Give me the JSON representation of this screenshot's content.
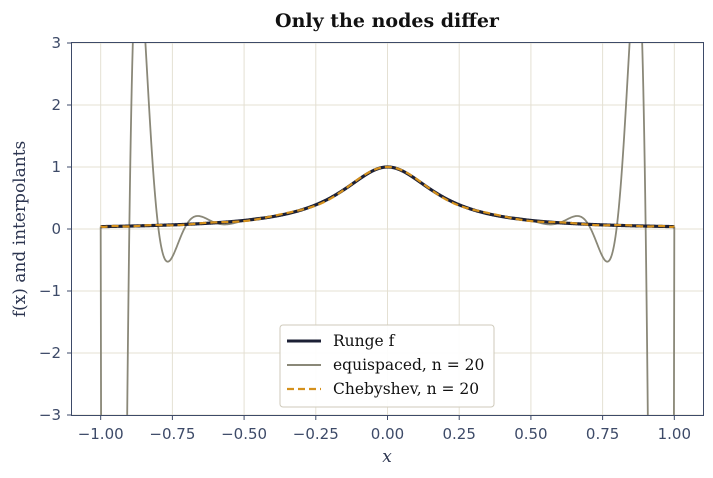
{
  "chart_data": {
    "type": "line",
    "title": "Only the nodes differ",
    "xlabel": "x",
    "ylabel": "f(x) and interpolants",
    "xlim": [
      -1.1,
      1.1
    ],
    "ylim": [
      -3,
      3
    ],
    "xticks": [
      -1.0,
      -0.75,
      -0.5,
      -0.25,
      0.0,
      0.25,
      0.5,
      0.75,
      1.0
    ],
    "xtick_labels": [
      "−1.00",
      "−0.75",
      "−0.50",
      "−0.25",
      "0.00",
      "0.25",
      "0.50",
      "0.75",
      "1.00"
    ],
    "yticks": [
      -3,
      -2,
      -1,
      0,
      1,
      2,
      3
    ],
    "ytick_labels": [
      "−3",
      "−2",
      "−1",
      "0",
      "1",
      "2",
      "3"
    ],
    "grid": true,
    "legend_position": "lower-center",
    "function": "1/(1+25x^2)",
    "domain": [
      -1,
      1
    ],
    "n": 20,
    "series": [
      {
        "name": "Runge f",
        "kind": "exact",
        "color": "#1c2035",
        "style": "solid"
      },
      {
        "name": "equispaced, n = 20",
        "kind": "equispaced",
        "color": "#8a8878",
        "style": "solid"
      },
      {
        "name": "Chebyshev, n = 20",
        "kind": "chebyshev",
        "color": "#d4901c",
        "style": "dashed"
      }
    ]
  }
}
